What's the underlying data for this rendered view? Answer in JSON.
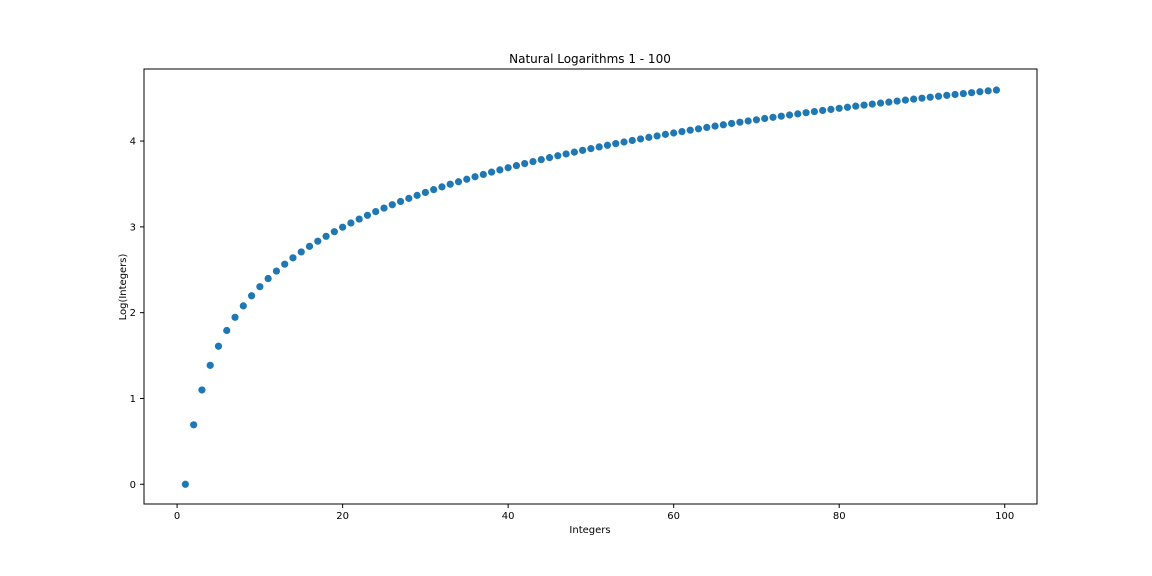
{
  "chart_data": {
    "type": "scatter",
    "title": "Natural Logarithms 1 - 100",
    "xlabel": "Integers",
    "ylabel": "Log(Integers)",
    "xlim": [
      -4,
      103.9
    ],
    "ylim": [
      -0.23,
      4.84
    ],
    "xticks": [
      0,
      20,
      40,
      60,
      80,
      100
    ],
    "xtick_labels": [
      "0",
      "20",
      "40",
      "60",
      "80",
      "100"
    ],
    "yticks": [
      0,
      1,
      2,
      3,
      4
    ],
    "ytick_labels": [
      "0",
      "1",
      "2",
      "3",
      "4"
    ],
    "grid": false,
    "marker_color": "#1f77b4",
    "x_start": 1,
    "x_end": 99,
    "x": [
      1,
      2,
      3,
      4,
      5,
      6,
      7,
      8,
      9,
      10,
      11,
      12,
      13,
      14,
      15,
      16,
      17,
      18,
      19,
      20,
      21,
      22,
      23,
      24,
      25,
      26,
      27,
      28,
      29,
      30,
      31,
      32,
      33,
      34,
      35,
      36,
      37,
      38,
      39,
      40,
      41,
      42,
      43,
      44,
      45,
      46,
      47,
      48,
      49,
      50,
      51,
      52,
      53,
      54,
      55,
      56,
      57,
      58,
      59,
      60,
      61,
      62,
      63,
      64,
      65,
      66,
      67,
      68,
      69,
      70,
      71,
      72,
      73,
      74,
      75,
      76,
      77,
      78,
      79,
      80,
      81,
      82,
      83,
      84,
      85,
      86,
      87,
      88,
      89,
      90,
      91,
      92,
      93,
      94,
      95,
      96,
      97,
      98,
      99
    ],
    "y": [
      0.0,
      0.693,
      1.099,
      1.386,
      1.609,
      1.792,
      1.946,
      2.079,
      2.197,
      2.303,
      2.398,
      2.485,
      2.565,
      2.639,
      2.708,
      2.773,
      2.833,
      2.89,
      2.944,
      2.996,
      3.045,
      3.091,
      3.135,
      3.178,
      3.219,
      3.258,
      3.296,
      3.332,
      3.367,
      3.401,
      3.434,
      3.466,
      3.497,
      3.526,
      3.555,
      3.584,
      3.611,
      3.638,
      3.664,
      3.689,
      3.714,
      3.738,
      3.761,
      3.784,
      3.807,
      3.829,
      3.85,
      3.871,
      3.892,
      3.912,
      3.932,
      3.951,
      3.97,
      3.989,
      4.007,
      4.025,
      4.043,
      4.06,
      4.078,
      4.094,
      4.111,
      4.127,
      4.143,
      4.159,
      4.174,
      4.19,
      4.205,
      4.22,
      4.234,
      4.248,
      4.263,
      4.277,
      4.29,
      4.304,
      4.317,
      4.331,
      4.344,
      4.357,
      4.369,
      4.382,
      4.394,
      4.407,
      4.419,
      4.431,
      4.443,
      4.454,
      4.466,
      4.477,
      4.489,
      4.5,
      4.511,
      4.522,
      4.533,
      4.543,
      4.554,
      4.564,
      4.575,
      4.585,
      4.595
    ]
  }
}
